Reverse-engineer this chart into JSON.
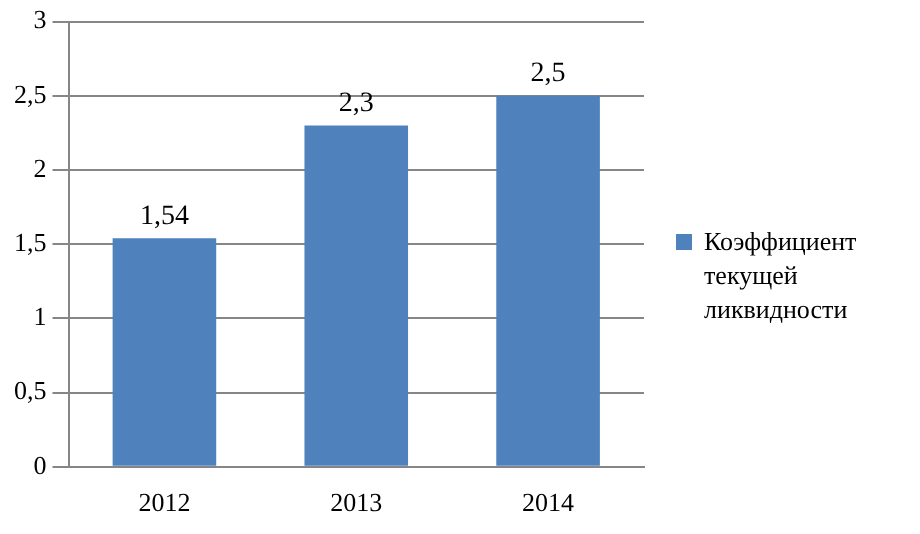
{
  "chart_data": {
    "type": "bar",
    "categories": [
      "2012",
      "2013",
      "2014"
    ],
    "series": [
      {
        "name": "Коэффициент текущей ликвидности",
        "color": "#4f81bd",
        "values": [
          1.54,
          2.3,
          2.5
        ],
        "value_labels": [
          "1,54",
          "2,3",
          "2,5"
        ]
      }
    ],
    "ylim": [
      0,
      3
    ],
    "yticks": [
      0,
      {
        "value": 0.5,
        "label": "0,5"
      },
      1,
      {
        "value": 1.5,
        "label": "1,5"
      },
      2,
      {
        "value": 2.5,
        "label": "2,5"
      },
      3
    ],
    "grid": "y",
    "legend": "right"
  }
}
